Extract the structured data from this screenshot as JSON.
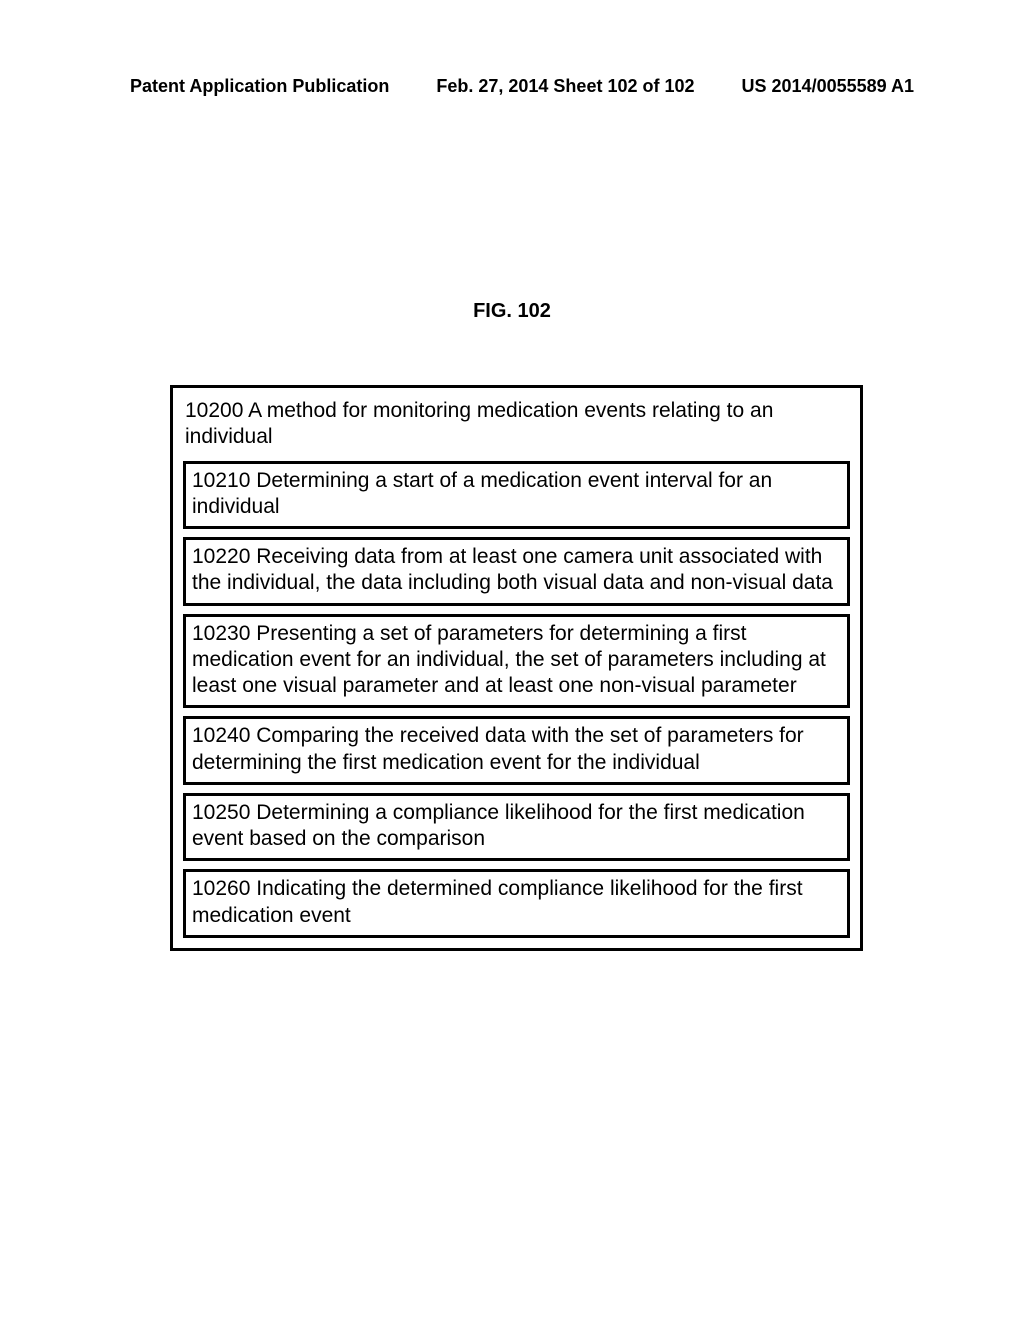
{
  "header": {
    "left": "Patent Application Publication",
    "center": "Feb. 27, 2014  Sheet 102 of 102",
    "right": "US 2014/0055589 A1"
  },
  "figure_label": "FIG. 102",
  "diagram": {
    "outer_title": "10200 A method for monitoring medication events relating to an individual",
    "steps": [
      "10210  Determining a start of a medication event interval for an individual",
      "10220  Receiving data from at least one camera unit associated with the individual, the data including both visual data and non-visual data",
      "10230 Presenting a set of parameters for determining a first medication event for an individual, the set of parameters including at least one visual parameter and at least one non-visual parameter",
      "10240 Comparing the received data with the set of parameters for determining the first medication event for the individual",
      "10250  Determining a compliance likelihood for the first medication event based on the comparison",
      "10260  Indicating the determined compliance likelihood for the first medication event"
    ]
  },
  "colors": {
    "background": "#ffffff",
    "text": "#000000",
    "border": "#000000"
  }
}
